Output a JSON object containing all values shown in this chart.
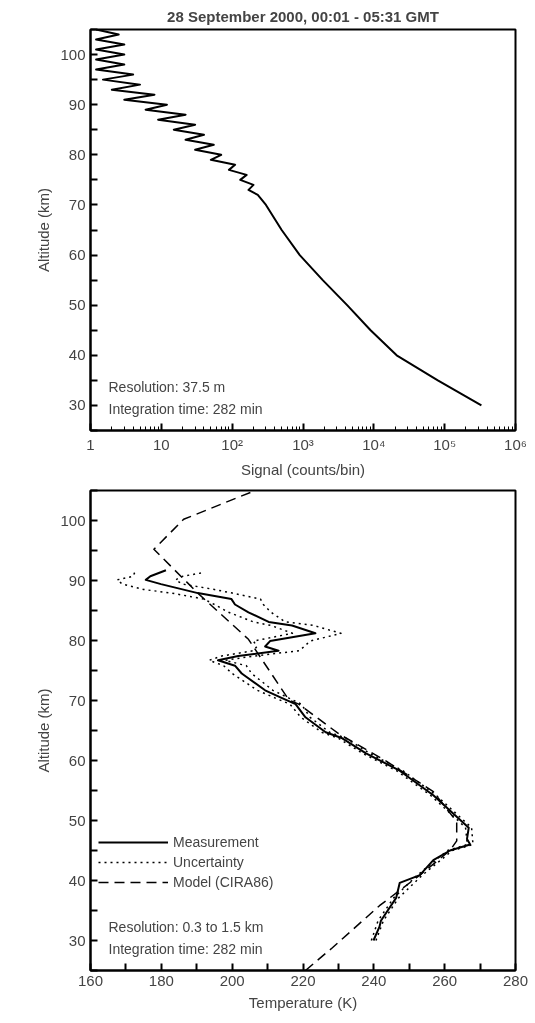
{
  "chart_data": [
    {
      "type": "line",
      "title": "28 September 2000, 00:01 - 05:31 GMT",
      "xlabel": "Signal (counts/bin)",
      "ylabel": "Altitude (km)",
      "log": "x",
      "xlim": [
        1,
        1000000
      ],
      "ylim": [
        25,
        105
      ],
      "xticks": [
        1,
        10,
        {
          "value": 100,
          "label": "10²"
        },
        {
          "value": 1000,
          "label": "10³"
        },
        {
          "value": 10000,
          "label": "10⁴"
        },
        {
          "value": 100000,
          "label": "10⁵"
        },
        {
          "value": 1000000,
          "label": "10⁶"
        }
      ],
      "yticks": [
        {
          "value": 25,
          "label": null
        },
        30,
        {
          "value": 35,
          "label": null
        },
        40,
        {
          "value": 45,
          "label": null
        },
        50,
        {
          "value": 55,
          "label": null
        },
        60,
        {
          "value": 65,
          "label": null
        },
        70,
        {
          "value": 75,
          "label": null
        },
        80,
        {
          "value": 85,
          "label": null
        },
        90,
        {
          "value": 95,
          "label": null
        },
        100,
        {
          "value": 105,
          "label": null
        }
      ],
      "annotations": [
        "Resolution: 37.5 m",
        "Integration time: 282 min"
      ],
      "series": [
        {
          "color": "#000000",
          "line_style": "solid",
          "x": [
            330000,
            80000,
            21000,
            9000,
            4200,
            1900,
            900,
            500,
            300,
            230,
            170,
            200,
            130,
            160,
            90,
            110,
            50,
            70,
            30,
            55,
            22,
            40,
            15,
            30,
            9,
            22,
            6,
            12,
            3,
            8,
            2,
            5,
            1.5,
            4,
            1.2,
            3,
            1.2,
            3,
            1.2,
            3,
            1.2,
            2.5,
            1.2
          ],
          "values": [
            30,
            35,
            40,
            45,
            50,
            55,
            60,
            65,
            70,
            72,
            73,
            74,
            75,
            76,
            77,
            78,
            79,
            80,
            81,
            82,
            83,
            84,
            85,
            86,
            87,
            88,
            89,
            90,
            91,
            92,
            93,
            94,
            95,
            96,
            97,
            98,
            99,
            100,
            101,
            102,
            103,
            104,
            105
          ]
        }
      ]
    },
    {
      "type": "line",
      "xlabel": "Temperature (K)",
      "ylabel": "Altitude (km)",
      "xlim": [
        160,
        280
      ],
      "ylim": [
        25,
        105
      ],
      "legend": "bottom left",
      "xticks": [
        160,
        {
          "value": 170,
          "label": null
        },
        180,
        {
          "value": 190,
          "label": null
        },
        200,
        {
          "value": 210,
          "label": null
        },
        220,
        {
          "value": 230,
          "label": null
        },
        240,
        {
          "value": 250,
          "label": null
        },
        260,
        {
          "value": 270,
          "label": null
        },
        280
      ],
      "yticks": [
        {
          "value": 25,
          "label": null
        },
        30,
        {
          "value": 35,
          "label": null
        },
        40,
        {
          "value": 45,
          "label": null
        },
        50,
        {
          "value": 55,
          "label": null
        },
        60,
        {
          "value": 65,
          "label": null
        },
        70,
        {
          "value": 75,
          "label": null
        },
        80,
        {
          "value": 85,
          "label": null
        },
        90,
        {
          "value": 95,
          "label": null
        },
        100,
        {
          "value": 105,
          "label": null
        }
      ],
      "annotations": [
        "Resolution: 0.3 to 1.5 km",
        "Integration time: 282 min"
      ],
      "series": [
        {
          "name": "Measurement",
          "color": "#000000",
          "line_style": "solid",
          "x": [
            239.9,
            241.6,
            242,
            246.3,
            247.3,
            253,
            256.8,
            261.5,
            267.2,
            266.3,
            266.8,
            264.4,
            256.8,
            247.3,
            237.8,
            231.1,
            226.4,
            220.7,
            217.9,
            214.1,
            209.3,
            202.7,
            200.8,
            196,
            201.7,
            213.1,
            209.3,
            210.7,
            223.5,
            216.9,
            210.3,
            204.6,
            200.8,
            199.8,
            190.3,
            179.9,
            175.6,
            176.9,
            181.3
          ],
          "values": [
            30,
            32.3,
            33.3,
            37.1,
            39.6,
            40.9,
            43.4,
            45,
            46,
            46.9,
            48.8,
            50.1,
            54.2,
            58.3,
            61.2,
            63.7,
            64.7,
            67.2,
            69.4,
            70.4,
            71.7,
            74.5,
            75.8,
            76.7,
            77.4,
            78.3,
            79,
            79.9,
            81.2,
            82.5,
            83.1,
            84.7,
            86,
            86.9,
            87.9,
            89.4,
            90.1,
            90.7,
            91.7
          ]
        },
        {
          "name": "Uncertainty",
          "color": "#000000",
          "line_style": "dotted",
          "x": [
            240.6,
            242.7,
            247,
            253.7,
            262.2,
            268,
            267.6,
            265.2,
            257.6,
            248.2,
            238.8,
            232.2,
            227.5,
            222,
            219.5,
            216,
            211.5,
            205.5,
            204,
            198,
            206,
            219,
            222,
            230.7,
            223,
            215,
            211,
            208.8,
            208,
            200,
            195,
            186,
            184,
            186,
            191.7
          ],
          "values": [
            30,
            33.3,
            37.1,
            40.9,
            45,
            46,
            48.8,
            50.1,
            54.2,
            58.3,
            61.2,
            63.7,
            64.7,
            67.2,
            69.4,
            70.4,
            71.7,
            74.5,
            75.8,
            76.7,
            77.4,
            78.3,
            79.9,
            81.2,
            82.5,
            83.1,
            84.7,
            86,
            86.9,
            87.9,
            88.5,
            89.4,
            90.1,
            90.7,
            91.3
          ]
        },
        {
          "color": "#000000",
          "line_style": "dotted",
          "x": [
            239.3,
            241.2,
            245.6,
            252.3,
            260.8,
            266.4,
            265.9,
            263.6,
            256,
            246.4,
            236.8,
            230,
            225.3,
            219.4,
            216.3,
            212.2,
            207.1,
            200,
            197.6,
            193.5,
            197,
            206,
            207,
            206,
            217,
            211,
            206,
            199,
            195,
            192,
            183,
            175,
            169,
            167.5,
            172,
            172.6
          ],
          "values": [
            30,
            33.3,
            37.1,
            40.9,
            45,
            46,
            48.8,
            50.1,
            54.2,
            58.3,
            61.2,
            63.7,
            64.7,
            67.2,
            69.4,
            70.4,
            71.7,
            74.5,
            75.8,
            76.7,
            77.4,
            78.3,
            79,
            79.9,
            81.2,
            82.5,
            83.1,
            84.7,
            86,
            86.9,
            87.9,
            88.5,
            89.4,
            90.1,
            90.7,
            91.5
          ]
        },
        {
          "name": "Model (CIRA86)",
          "color": "#000000",
          "line_style": "dashed",
          "x": [
            220.7,
            228.3,
            241.6,
            253,
            261.5,
            263.4,
            263.4,
            256.8,
            243.5,
            230.2,
            218.8,
            216,
            204.6,
            190.3,
            177.9,
            186.3,
            206.5
          ],
          "values": [
            25,
            28.8,
            35.8,
            40.9,
            45,
            46.6,
            49.8,
            54.8,
            59.9,
            64.4,
            69.4,
            70.1,
            80.2,
            87.9,
            95.2,
            100.2,
            105
          ]
        }
      ]
    }
  ]
}
